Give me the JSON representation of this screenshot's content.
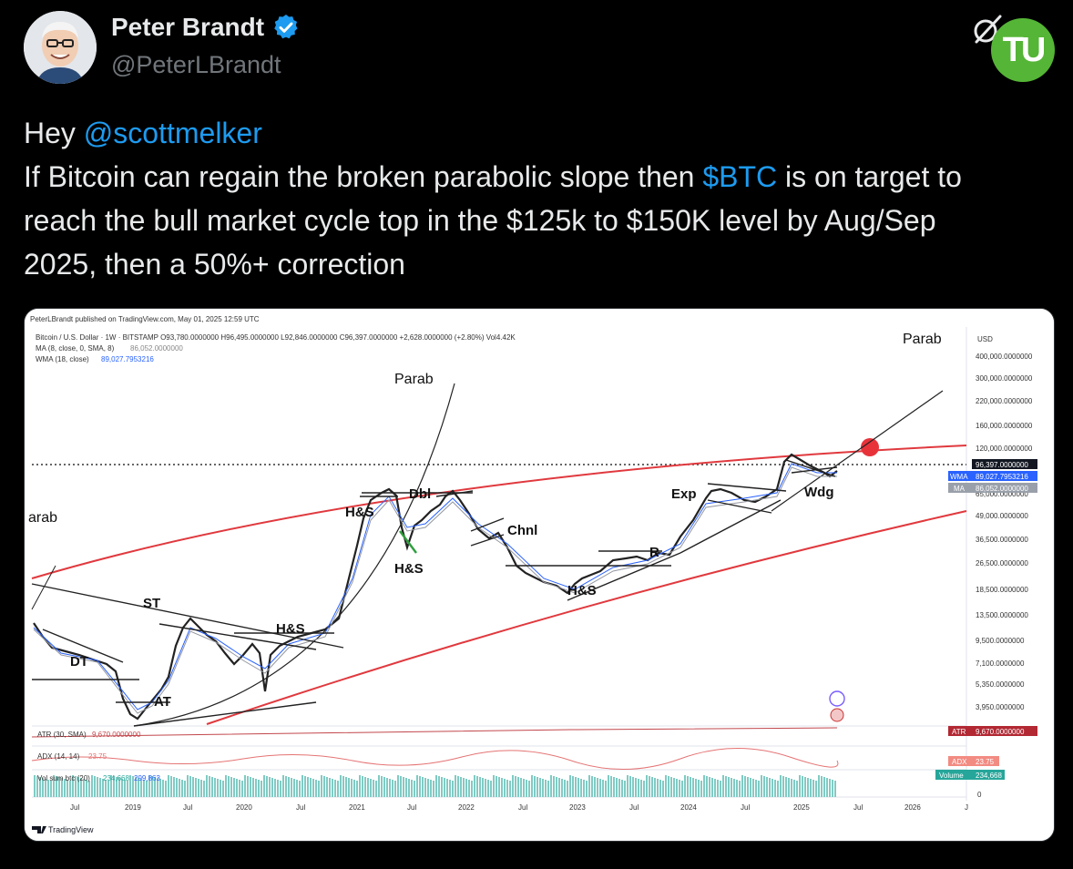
{
  "author": {
    "name": "Peter Brandt",
    "handle": "@PeterLBrandt"
  },
  "brand": {
    "logo_text": "TU",
    "logo_color": "#55b536"
  },
  "tweet": {
    "line1_prefix": "Hey ",
    "mention": "@scottmelker",
    "line2_prefix": "If Bitcoin can regain the broken parabolic slope then ",
    "cashtag": "$BTC",
    "line2_suffix": " is on target to",
    "line3": "reach the bull market cycle top in the $125k to $150K level by Aug/Sep",
    "line4": "2025, then a 50%+ correction"
  },
  "chart": {
    "published": "PeterLBrandt published on TradingView.com, May 01, 2025 12:59 UTC",
    "symbol_line": "Bitcoin / U.S. Dollar · 1W · BITSTAMP  O93,780.0000000  H96,495.0000000  L92,846.0000000  C96,397.0000000  +2,628.0000000 (+2.80%)  Vol4.42K",
    "ma_line": "MA (8, close, 0, SMA, 8)",
    "ma_value": "86,052.0000000",
    "wma_line": "WMA (18, close)",
    "wma_value": "89,027.7953216",
    "currency": "USD",
    "price_labels": [
      "400,000.0000000",
      "300,000.0000000",
      "220,000.0000000",
      "160,000.0000000",
      "120,000.0000000",
      "65,000.0000000",
      "49,000.0000000",
      "36,500.0000000",
      "26,500.0000000",
      "18,500.0000000",
      "13,500.0000000",
      "9,500.0000000",
      "7,100.0000000",
      "5,350.0000000",
      "3,950.0000000"
    ],
    "last_price": "96,397.0000000",
    "wma_badge": "WMA",
    "wma_badge_value": "89,027.7953216",
    "ma_badge": "MA",
    "ma_badge_value": "86,052.0000000",
    "time_labels": [
      "Jul",
      "2019",
      "Jul",
      "2020",
      "Jul",
      "2021",
      "Jul",
      "2022",
      "Jul",
      "2023",
      "Jul",
      "2024",
      "Jul",
      "2025",
      "Jul",
      "2026",
      "J"
    ],
    "annotations": {
      "parab_top": "Parab",
      "parab_right": "Parab",
      "parab_left": "arab",
      "st": "ST",
      "dt": "DT",
      "at": "AT",
      "hs1": "H&S",
      "hs2": "H&S",
      "hs3": "H&S",
      "hs4": "H&S",
      "dbl": "Dbl",
      "chnl": "Chnl",
      "r": "R",
      "exp": "Exp",
      "wdg": "Wdg"
    },
    "atr_label": "ATR (30, SMA)",
    "atr_value": "9,670.0000000",
    "atr_badge": "ATR",
    "atr_badge_value": "9,670.0000000",
    "adx_label": "ADX (14, 14)",
    "adx_value": "23.75",
    "adx_badge": "ADX",
    "adx_badge_value": "23.75",
    "vol_label": "Vol sum btc (20)",
    "vol_v1": "234,668",
    "vol_v2": "299,863",
    "vol_badge": "Volume",
    "vol_badge_value": "234,668",
    "zero": "0",
    "footer": "TradingView"
  }
}
